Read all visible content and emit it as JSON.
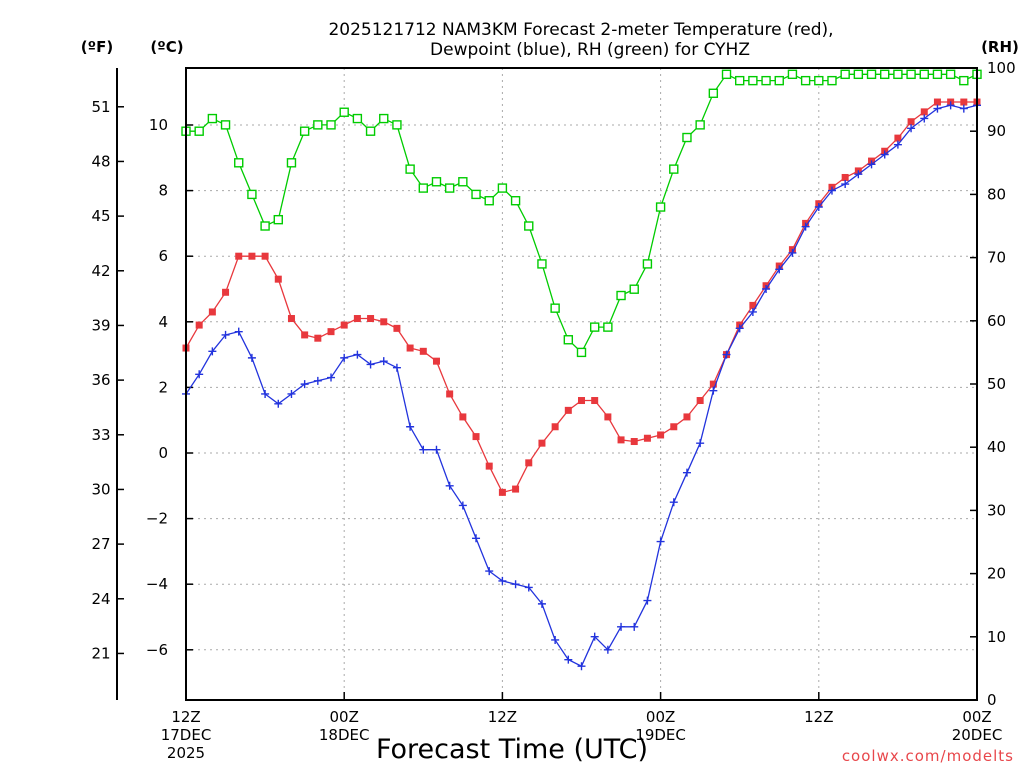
{
  "chart_data": {
    "type": "line",
    "title_line1": "2025121712 NAM3KM Forecast 2-meter Temperature (red),",
    "title_line2": "Dewpoint (blue), RH (green) for CYHZ",
    "xlabel": "Forecast Time (UTC)",
    "credit": "coolwx.com/modelts",
    "unit_f": "(ºF)",
    "unit_c": "(ºC)",
    "unit_rh": "(RH)",
    "x_range_hours": [
      0,
      60
    ],
    "ylim_c": [
      -7.5,
      11.8
    ],
    "ylim_rh": [
      0,
      100
    ],
    "x_ticks": [
      {
        "hour": 0,
        "lines": [
          "12Z",
          "17DEC",
          "2025"
        ]
      },
      {
        "hour": 12,
        "lines": [
          "00Z",
          "18DEC"
        ]
      },
      {
        "hour": 24,
        "lines": [
          "12Z"
        ]
      },
      {
        "hour": 36,
        "lines": [
          "00Z",
          "19DEC"
        ]
      },
      {
        "hour": 48,
        "lines": [
          "12Z"
        ]
      },
      {
        "hour": 60,
        "lines": [
          "00Z",
          "20DEC"
        ]
      }
    ],
    "c_ticks": [
      -6,
      -4,
      -2,
      0,
      2,
      4,
      6,
      8,
      10
    ],
    "f_ticks": [
      21,
      24,
      27,
      30,
      33,
      36,
      39,
      42,
      45,
      48,
      51
    ],
    "rh_ticks": [
      0,
      10,
      20,
      30,
      40,
      50,
      60,
      70,
      80,
      90,
      100
    ],
    "x": [
      0,
      1,
      2,
      3,
      4,
      5,
      6,
      7,
      8,
      9,
      10,
      11,
      12,
      13,
      14,
      15,
      16,
      17,
      18,
      19,
      20,
      21,
      22,
      23,
      24,
      25,
      26,
      27,
      28,
      29,
      30,
      31,
      32,
      33,
      34,
      35,
      36,
      37,
      38,
      39,
      40,
      41,
      42,
      43,
      44,
      45,
      46,
      47,
      48,
      49,
      50,
      51,
      52,
      53,
      54,
      55,
      56,
      57,
      58,
      59,
      60
    ],
    "series": [
      {
        "name": "Temperature",
        "color": "#e8383d",
        "marker": "filled-square",
        "axis": "celsius",
        "values": [
          3.2,
          3.9,
          4.3,
          4.9,
          6.0,
          6.0,
          6.0,
          5.3,
          4.1,
          3.6,
          3.5,
          3.7,
          3.9,
          4.1,
          4.1,
          4.0,
          3.8,
          3.2,
          3.1,
          2.8,
          1.8,
          1.1,
          0.5,
          -0.4,
          -1.2,
          -1.1,
          -0.3,
          0.3,
          0.8,
          1.3,
          1.6,
          1.6,
          1.1,
          0.4,
          0.35,
          0.45,
          0.55,
          0.8,
          1.1,
          1.6,
          2.1,
          3.0,
          3.9,
          4.5,
          5.1,
          5.7,
          6.2,
          7.0,
          7.6,
          8.1,
          8.4,
          8.6,
          8.9,
          9.2,
          9.6,
          10.1,
          10.4,
          10.7,
          10.7,
          10.7,
          10.7
        ]
      },
      {
        "name": "Dewpoint",
        "color": "#2233dd",
        "marker": "plus",
        "axis": "celsius",
        "values": [
          1.8,
          2.4,
          3.1,
          3.6,
          3.7,
          2.9,
          1.8,
          1.5,
          1.8,
          2.1,
          2.2,
          2.3,
          2.9,
          3.0,
          2.7,
          2.8,
          2.6,
          0.8,
          0.1,
          0.1,
          -1.0,
          -1.6,
          -2.6,
          -3.6,
          -3.9,
          -4.0,
          -4.1,
          -4.6,
          -5.7,
          -6.3,
          -6.5,
          -5.6,
          -6.0,
          -5.3,
          -5.3,
          -4.5,
          -2.7,
          -1.5,
          -0.6,
          0.3,
          1.9,
          3.0,
          3.8,
          4.3,
          5.0,
          5.6,
          6.1,
          6.9,
          7.5,
          8.0,
          8.2,
          8.5,
          8.8,
          9.1,
          9.4,
          9.9,
          10.2,
          10.5,
          10.6,
          10.5,
          10.6
        ]
      },
      {
        "name": "RH",
        "color": "#00cc00",
        "marker": "open-square",
        "axis": "rh",
        "values": [
          90,
          90,
          92,
          91,
          85,
          80,
          75,
          76,
          85,
          90,
          91,
          91,
          93,
          92,
          90,
          92,
          91,
          84,
          81,
          82,
          81,
          82,
          80,
          79,
          81,
          79,
          75,
          69,
          62,
          57,
          55,
          59,
          59,
          64,
          65,
          69,
          78,
          84,
          89,
          91,
          96,
          99,
          98,
          98,
          98,
          98,
          99,
          98,
          98,
          98,
          99,
          99,
          99,
          99,
          99,
          99,
          99,
          99,
          99,
          98,
          99
        ]
      }
    ]
  }
}
